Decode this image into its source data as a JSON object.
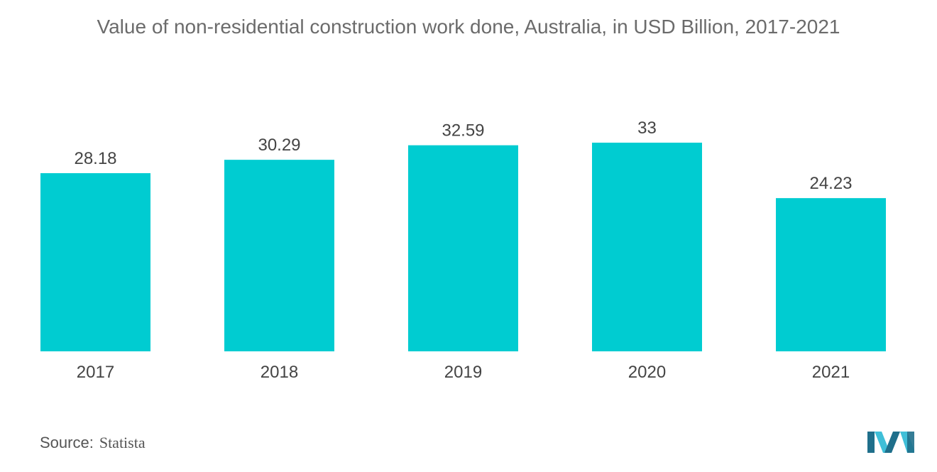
{
  "chart_data": {
    "type": "bar",
    "title": "Value of non-residential construction work done, Australia, in USD Billion, 2017-2021",
    "categories": [
      "2017",
      "2018",
      "2019",
      "2020",
      "2021"
    ],
    "values": [
      28.18,
      30.29,
      32.59,
      33,
      24.23
    ],
    "value_labels": [
      "28.18",
      "30.29",
      "32.59",
      "33",
      "24.23"
    ],
    "xlabel": "",
    "ylabel": "",
    "ylim": [
      0,
      33
    ],
    "grid": false,
    "bar_color": "#00ccd1"
  },
  "footer": {
    "source_label": "Source:",
    "source_value": "Statista"
  },
  "logo": {
    "icon": "mordor-intelligence-logo-icon",
    "colors": [
      "#1f6f8b",
      "#3fbfd8"
    ]
  }
}
